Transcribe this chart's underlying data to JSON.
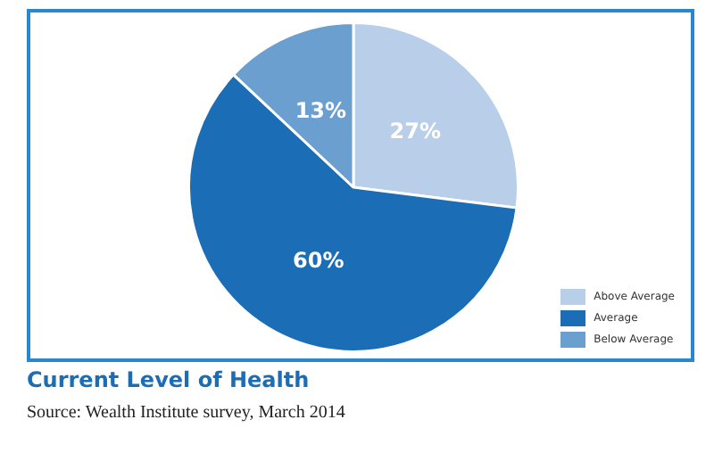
{
  "chart_data": {
    "type": "pie",
    "title": "Current Level of Health",
    "annotations": [
      "Source: Wealth Institute survey, March 2014"
    ],
    "categories": [
      "Above Average",
      "Average",
      "Below Average"
    ],
    "values": [
      27,
      60,
      13
    ],
    "value_labels": [
      "27%",
      "60%",
      "13%"
    ],
    "colors": [
      "#b9cfe9",
      "#1b6db5",
      "#6b9fd0"
    ],
    "legend": "bottom right"
  }
}
